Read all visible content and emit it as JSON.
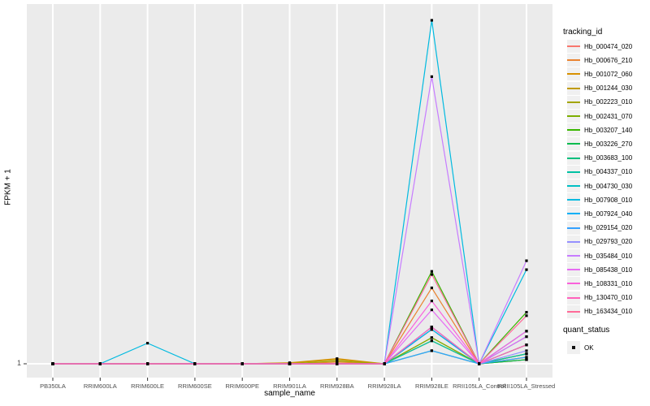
{
  "chart_data": {
    "type": "line",
    "title": "",
    "xlabel": "sample_name",
    "ylabel": "FPKM + 1",
    "y_axis": {
      "tick_labels": [
        "1"
      ],
      "note": "only the tick '1' is labelled; series values below are relative heights (0 = y of 1, 1 = top of panel) estimated from pixels"
    },
    "y_tick": "1",
    "categories": [
      "PB350LA",
      "RRIM600LA",
      "RRIM600LE",
      "RRIM600SE",
      "RRIM600PE",
      "RRIM901LA",
      "RRIM928BA",
      "RRIM928LA",
      "RRIM928LE",
      "RRII105LA_Control",
      "RRII105LA_Stressed"
    ],
    "legend_title": "tracking_id",
    "legend_position": "right",
    "grid": "ggplot-white-on-grey",
    "panel_bg": "#EBEBEB",
    "gridline_color": "#FFFFFF",
    "point_marker": "black-square",
    "series": [
      {
        "name": "Hb_000474_020",
        "color": "#F8766D",
        "values": [
          0,
          0,
          0,
          0,
          0,
          0,
          0,
          0,
          0.1,
          0,
          0.012
        ]
      },
      {
        "name": "Hb_000676_210",
        "color": "#EA8331",
        "values": [
          0,
          0,
          0,
          0,
          0,
          0,
          0.005,
          0,
          0.221,
          0,
          0.055
        ]
      },
      {
        "name": "Hb_001072_060",
        "color": "#D89000",
        "values": [
          0,
          0,
          0,
          0,
          0,
          0.003,
          0.015,
          0,
          0.107,
          0,
          0.029
        ]
      },
      {
        "name": "Hb_001244_030",
        "color": "#C09B00",
        "values": [
          0,
          0,
          0,
          0,
          0,
          0.002,
          0.012,
          0,
          0.076,
          0,
          0.019
        ]
      },
      {
        "name": "Hb_002223_010",
        "color": "#A3A500",
        "values": [
          0,
          0,
          0,
          0,
          0,
          0,
          0.008,
          0,
          0.067,
          0,
          0.012
        ]
      },
      {
        "name": "Hb_002431_070",
        "color": "#7CAE00",
        "values": [
          0,
          0,
          0,
          0,
          0,
          0,
          0,
          0,
          0.076,
          0,
          0.029
        ]
      },
      {
        "name": "Hb_003207_140",
        "color": "#39B600",
        "values": [
          0,
          0,
          0,
          0,
          0,
          0,
          0,
          0,
          0.269,
          0,
          0.15
        ]
      },
      {
        "name": "Hb_003226_270",
        "color": "#00BB4E",
        "values": [
          0,
          0,
          0,
          0,
          0,
          0,
          0,
          0,
          0.038,
          0,
          0.012
        ]
      },
      {
        "name": "Hb_003683_100",
        "color": "#00BF7D",
        "values": [
          0,
          0,
          0,
          0,
          0,
          0,
          0,
          0,
          0.1,
          0,
          0.055
        ]
      },
      {
        "name": "Hb_004337_010",
        "color": "#00C1A3",
        "values": [
          0,
          0,
          0,
          0,
          0,
          0,
          0,
          0,
          0.067,
          0,
          0.029
        ]
      },
      {
        "name": "Hb_004730_030",
        "color": "#00BFC4",
        "values": [
          0,
          0,
          0,
          0,
          0,
          0,
          0,
          0,
          0.107,
          0,
          0.079
        ]
      },
      {
        "name": "Hb_007908_010",
        "color": "#00BAE0",
        "values": [
          0,
          0,
          0.06,
          0,
          0,
          0,
          0,
          0,
          1.0,
          0,
          0.274
        ]
      },
      {
        "name": "Hb_007924_040",
        "color": "#00B0F6",
        "values": [
          0,
          0,
          0,
          0,
          0,
          0,
          0,
          0,
          0.1,
          0,
          0.095
        ]
      },
      {
        "name": "Hb_029154_020",
        "color": "#35A2FF",
        "values": [
          0,
          0,
          0,
          0,
          0,
          0,
          0,
          0,
          0.038,
          0,
          0.019
        ]
      },
      {
        "name": "Hb_029793_020",
        "color": "#9590FF",
        "values": [
          0,
          0,
          0,
          0,
          0,
          0,
          0,
          0,
          0.107,
          0,
          0.038
        ]
      },
      {
        "name": "Hb_035484_010",
        "color": "#C77CFF",
        "values": [
          0,
          0,
          0,
          0,
          0,
          0,
          0,
          0,
          0.836,
          0,
          0.3
        ]
      },
      {
        "name": "Hb_085438_010",
        "color": "#E76BF3",
        "values": [
          0,
          0,
          0,
          0,
          0,
          0,
          0,
          0,
          0.157,
          0,
          0.079
        ]
      },
      {
        "name": "Hb_108331_010",
        "color": "#FA62DB",
        "values": [
          0,
          0,
          0,
          0,
          0,
          0,
          0,
          0,
          0.183,
          0,
          0.095
        ]
      },
      {
        "name": "Hb_130470_010",
        "color": "#FF62BC",
        "values": [
          0,
          0,
          0,
          0,
          0,
          0,
          0,
          0,
          0.107,
          0,
          0.055
        ]
      },
      {
        "name": "Hb_163434_010",
        "color": "#FF6A98",
        "values": [
          0,
          0,
          0,
          0,
          0,
          0,
          0,
          0,
          0.26,
          0,
          0.14
        ]
      }
    ],
    "legend2": {
      "title": "quant_status",
      "items": [
        {
          "label": "OK",
          "marker": "black-square"
        }
      ]
    }
  }
}
